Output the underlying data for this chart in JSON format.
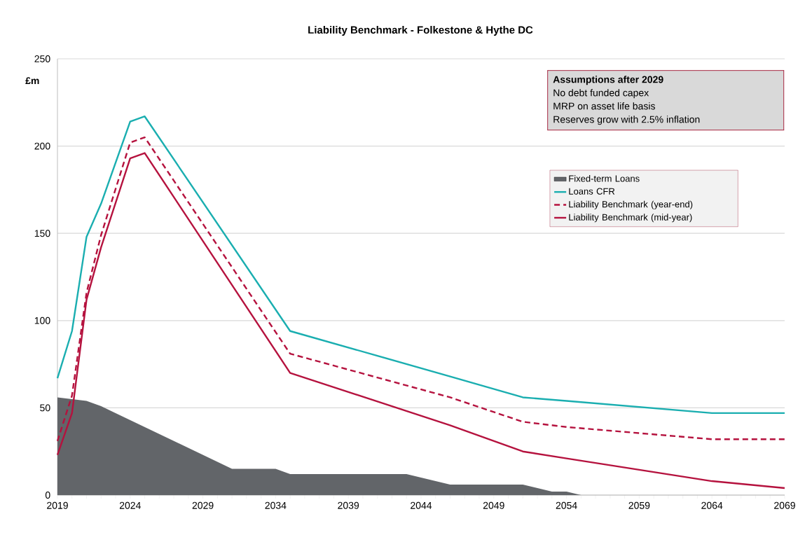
{
  "chart_data": {
    "type": "line",
    "title": "Liability Benchmark - Folkestone & Hythe DC",
    "ylabel": "£m",
    "xlim": [
      2019,
      2069
    ],
    "ylim": [
      0,
      250
    ],
    "xticks": [
      2019,
      {
        "value": 2020,
        "label": null
      },
      {
        "value": 2021,
        "label": null
      },
      {
        "value": 2022,
        "label": null
      },
      {
        "value": 2023,
        "label": null
      },
      2024,
      {
        "value": 2025,
        "label": null
      },
      {
        "value": 2026,
        "label": null
      },
      {
        "value": 2027,
        "label": null
      },
      {
        "value": 2028,
        "label": null
      },
      2029,
      {
        "value": 2030,
        "label": null
      },
      {
        "value": 2031,
        "label": null
      },
      {
        "value": 2032,
        "label": null
      },
      {
        "value": 2033,
        "label": null
      },
      2034,
      {
        "value": 2035,
        "label": null
      },
      {
        "value": 2036,
        "label": null
      },
      {
        "value": 2037,
        "label": null
      },
      {
        "value": 2038,
        "label": null
      },
      2039,
      {
        "value": 2040,
        "label": null
      },
      {
        "value": 2041,
        "label": null
      },
      {
        "value": 2042,
        "label": null
      },
      {
        "value": 2043,
        "label": null
      },
      2044,
      {
        "value": 2045,
        "label": null
      },
      {
        "value": 2046,
        "label": null
      },
      {
        "value": 2047,
        "label": null
      },
      {
        "value": 2048,
        "label": null
      },
      2049,
      {
        "value": 2050,
        "label": null
      },
      {
        "value": 2051,
        "label": null
      },
      {
        "value": 2052,
        "label": null
      },
      {
        "value": 2053,
        "label": null
      },
      2054,
      {
        "value": 2055,
        "label": null
      },
      {
        "value": 2056,
        "label": null
      },
      {
        "value": 2057,
        "label": null
      },
      {
        "value": 2058,
        "label": null
      },
      2059,
      {
        "value": 2060,
        "label": null
      },
      {
        "value": 2061,
        "label": null
      },
      {
        "value": 2062,
        "label": null
      },
      {
        "value": 2063,
        "label": null
      },
      2064,
      {
        "value": 2065,
        "label": null
      },
      {
        "value": 2066,
        "label": null
      },
      {
        "value": 2067,
        "label": null
      },
      {
        "value": 2068,
        "label": null
      },
      2069
    ],
    "yticks": [
      0,
      50,
      100,
      150,
      200,
      250
    ],
    "grid": "y",
    "legend": "top right",
    "annotations": [
      "Assumptions after 2029",
      "No debt funded capex",
      "MRP on asset life basis",
      "Reserves grow with 2.5% inflation"
    ],
    "series": [
      {
        "name": "Fixed-term Loans",
        "type": "area",
        "color": "#626569",
        "x": [
          2019,
          2021,
          2022,
          2023,
          2031,
          2034,
          2035,
          2043,
          2046,
          2051,
          2053,
          2054,
          2055
        ],
        "values": [
          56,
          54,
          51,
          47,
          15,
          15,
          12,
          12,
          6,
          6,
          2,
          2,
          0
        ]
      },
      {
        "name": "Loans CFR",
        "color": "#1aaeb0",
        "x": [
          2019,
          2020,
          2021,
          2022,
          2024,
          2025,
          2035,
          2046,
          2051,
          2054,
          2064,
          2069
        ],
        "values": [
          67,
          94,
          148,
          167,
          214,
          217,
          94,
          68,
          56,
          54,
          47,
          47
        ]
      },
      {
        "name": "Liability Benchmark (year-end)",
        "color": "#b5123e",
        "line_style": "dashed",
        "x": [
          2019,
          2020,
          2021,
          2022,
          2024,
          2025,
          2035,
          2046,
          2051,
          2054,
          2064,
          2069
        ],
        "values": [
          31,
          57,
          116,
          149,
          202,
          205,
          81,
          56,
          42,
          39,
          32,
          32
        ]
      },
      {
        "name": "Liability Benchmark (mid-year)",
        "color": "#b5123e",
        "x": [
          2019,
          2020,
          2021,
          2022,
          2024,
          2025,
          2035,
          2046,
          2051,
          2054,
          2064,
          2069
        ],
        "values": [
          23,
          47,
          112,
          142,
          193,
          196,
          70,
          40,
          25,
          21,
          8,
          4
        ]
      }
    ]
  }
}
